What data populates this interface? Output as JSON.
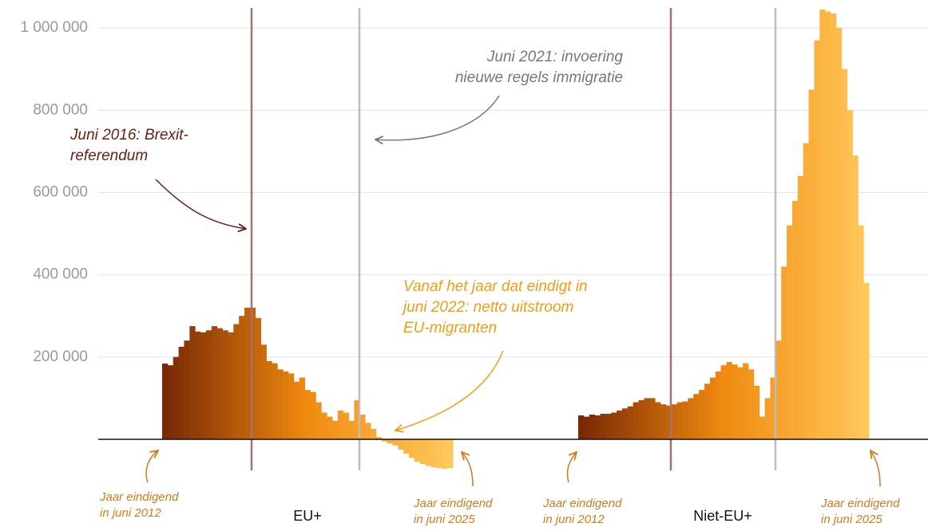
{
  "chart_data": {
    "type": "bar",
    "ylim": [
      -223000,
      1068000
    ],
    "yticks": [
      {
        "value": 200000,
        "label": "200 000"
      },
      {
        "value": 400000,
        "label": "400 000"
      },
      {
        "value": 600000,
        "label": "600 000"
      },
      {
        "value": 800000,
        "label": "800 000"
      },
      {
        "value": 1000000,
        "label": "1 000 000"
      }
    ],
    "grid": true,
    "colors": [
      "#7a2805",
      "#f08a10",
      "#ffc85a"
    ],
    "series": [
      {
        "name": "EU+",
        "values": [
          184000,
          180000,
          200000,
          225000,
          240000,
          275000,
          262000,
          260000,
          265000,
          275000,
          270000,
          265000,
          260000,
          280000,
          300000,
          320000,
          320000,
          295000,
          230000,
          190000,
          185000,
          170000,
          165000,
          160000,
          140000,
          150000,
          120000,
          115000,
          90000,
          65000,
          55000,
          45000,
          70000,
          65000,
          45000,
          95000,
          60000,
          40000,
          25000,
          5000,
          -5000,
          -10000,
          -15000,
          -25000,
          -35000,
          -45000,
          -55000,
          -60000,
          -65000,
          -68000,
          -70000,
          -72000,
          -70000
        ]
      },
      {
        "name": "Niet-EU+",
        "values": [
          58000,
          55000,
          60000,
          58000,
          62000,
          62000,
          65000,
          70000,
          75000,
          80000,
          90000,
          95000,
          100000,
          100000,
          90000,
          85000,
          82000,
          85000,
          90000,
          92000,
          100000,
          110000,
          120000,
          135000,
          150000,
          165000,
          180000,
          188000,
          182000,
          175000,
          185000,
          170000,
          130000,
          55000,
          100000,
          150000,
          240000,
          420000,
          520000,
          580000,
          640000,
          720000,
          850000,
          970000,
          1045000,
          1040000,
          1035000,
          1000000,
          900000,
          800000,
          690000,
          520000,
          380000
        ]
      }
    ],
    "annotations": [
      [
        "Juni 2016: Brexit-",
        "referendum"
      ],
      [
        "Juni 2021: invoering",
        "nieuwe regels immigratie"
      ],
      [
        "Vanaf het jaar dat eindigt in",
        "juni 2022: netto uitstroom",
        "EU-migranten"
      ],
      [
        "Jaar eindigend",
        "in juni 2012"
      ],
      [
        "Jaar eindigend",
        "in juni 2025"
      ],
      [
        "Jaar eindigend",
        "in juni 2012"
      ],
      [
        "Jaar eindigend",
        "in juni 2025"
      ]
    ]
  }
}
